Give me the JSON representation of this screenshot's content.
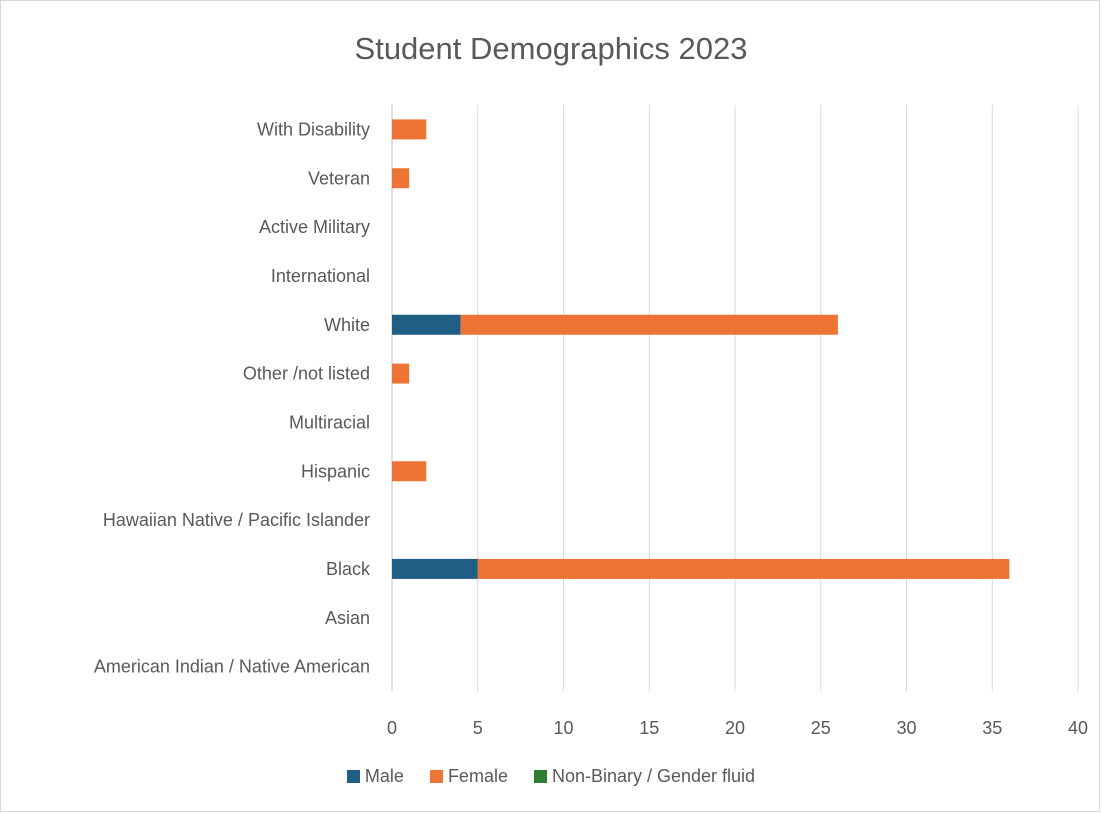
{
  "chart_data": {
    "type": "bar",
    "orientation": "horizontal",
    "stacked": true,
    "title": "Student Demographics 2023",
    "categories": [
      "American Indian / Native American",
      "Asian",
      "Black",
      "Hawaiian Native / Pacific Islander",
      "Hispanic",
      "Multiracial",
      "Other /not listed",
      "White",
      "International",
      "Active Military",
      "Veteran",
      "With Disability"
    ],
    "series": [
      {
        "name": "Male",
        "color": "#1f5f86",
        "values": [
          0,
          0,
          5,
          0,
          0,
          0,
          0,
          4,
          0,
          0,
          0,
          0
        ]
      },
      {
        "name": "Female",
        "color": "#ed7434",
        "values": [
          0,
          0,
          31,
          0,
          2,
          0,
          1,
          22,
          0,
          0,
          1,
          2
        ]
      },
      {
        "name": "Non-Binary / Gender fluid",
        "color": "#2e7d32",
        "values": [
          0,
          0,
          0,
          0,
          0,
          0,
          0,
          0,
          0,
          0,
          0,
          0
        ]
      }
    ],
    "xlim": [
      0,
      40
    ],
    "xticks": [
      "0",
      "5",
      "10",
      "15",
      "20",
      "25",
      "30",
      "35",
      "40"
    ],
    "grid": "vertical",
    "legend_position": "bottom"
  }
}
